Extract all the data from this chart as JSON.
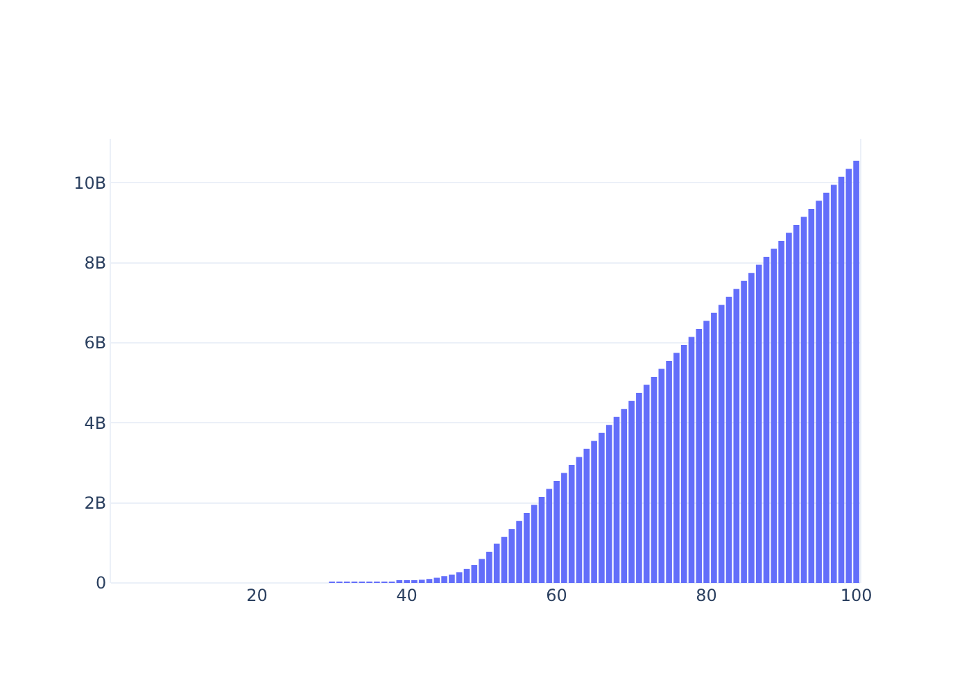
{
  "chart_data": {
    "type": "bar",
    "x": [
      1,
      2,
      3,
      4,
      5,
      6,
      7,
      8,
      9,
      10,
      11,
      12,
      13,
      14,
      15,
      16,
      17,
      18,
      19,
      20,
      21,
      22,
      23,
      24,
      25,
      26,
      27,
      28,
      29,
      30,
      31,
      32,
      33,
      34,
      35,
      36,
      37,
      38,
      39,
      40,
      41,
      42,
      43,
      44,
      45,
      46,
      47,
      48,
      49,
      50,
      51,
      52,
      53,
      54,
      55,
      56,
      57,
      58,
      59,
      60,
      61,
      62,
      63,
      64,
      65,
      66,
      67,
      68,
      69,
      70,
      71,
      72,
      73,
      74,
      75,
      76,
      77,
      78,
      79,
      80,
      81,
      82,
      83,
      84,
      85,
      86,
      87,
      88,
      89,
      90,
      91,
      92,
      93,
      94,
      95,
      96,
      97,
      98,
      99,
      100
    ],
    "values": [
      0,
      0,
      0,
      0,
      0,
      0,
      0,
      0,
      0,
      0,
      0,
      0,
      0,
      0,
      0,
      0,
      0,
      0,
      0,
      0,
      0,
      0,
      0,
      0,
      0,
      0,
      0,
      0,
      0,
      10000000.0,
      10000000.0,
      10000000.0,
      10000000.0,
      10000000.0,
      10000000.0,
      20000000.0,
      20000000.0,
      30000000.0,
      40000000.0,
      50000000.0,
      60000000.0,
      80000000.0,
      100000000.0,
      130000000.0,
      170000000.0,
      210000000.0,
      270000000.0,
      350000000.0,
      450000000.0,
      600000000.0,
      780000000.0,
      980000000.0,
      1150000000.0,
      1350000000.0,
      1550000000.0,
      1750000000.0,
      1950000000.0,
      2150000000.0,
      2350000000.0,
      2550000000.0,
      2750000000.0,
      2950000000.0,
      3150000000.0,
      3350000000.0,
      3550000000.0,
      3750000000.0,
      3950000000.0,
      4150000000.0,
      4350000000.0,
      4550000000.0,
      4750000000.0,
      4950000000.0,
      5150000000.0,
      5350000000.0,
      5550000000.0,
      5750000000.0,
      5950000000.0,
      6150000000.0,
      6350000000.0,
      6550000000.0,
      6750000000.0,
      6950000000.0,
      7150000000.0,
      7350000000.0,
      7550000000.0,
      7750000000.0,
      7950000000.0,
      8150000000.0,
      8350000000.0,
      8550000000.0,
      8750000000.0,
      8950000000.0,
      9150000000.0,
      9350000000.0,
      9550000000.0,
      9750000000.0,
      9950000000.0,
      10150000000.0,
      10350000000.0,
      10550000000.0
    ],
    "color": "#636efa",
    "xlim": [
      0.5,
      100.5
    ],
    "xticks": [
      20,
      40,
      60,
      80,
      100
    ],
    "ylim": [
      0,
      11100000000.0
    ],
    "yticks": [
      0,
      {
        "value": 2000000000.0,
        "label": "2B"
      },
      {
        "value": 4000000000.0,
        "label": "4B"
      },
      {
        "value": 6000000000.0,
        "label": "6B"
      },
      {
        "value": 8000000000.0,
        "label": "8B"
      },
      {
        "value": 10000000000.0,
        "label": "10B"
      }
    ],
    "grid": "y"
  }
}
